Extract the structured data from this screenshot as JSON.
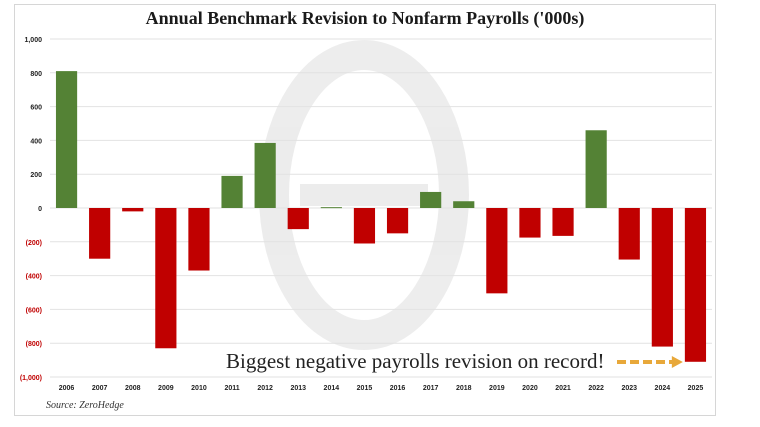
{
  "chart_data": {
    "type": "bar",
    "title": "Annual Benchmark Revision to Nonfarm Payrolls ('000s)",
    "categories": [
      "2006",
      "2007",
      "2008",
      "2009",
      "2010",
      "2011",
      "2012",
      "2013",
      "2014",
      "2015",
      "2016",
      "2017",
      "2018",
      "2019",
      "2020",
      "2021",
      "2022",
      "2023",
      "2024",
      "2025"
    ],
    "values": [
      810,
      -300,
      -20,
      -830,
      -370,
      190,
      385,
      -125,
      5,
      -210,
      -150,
      95,
      40,
      -505,
      -175,
      -165,
      460,
      -305,
      -820,
      -910
    ],
    "ylim": [
      -1000,
      1000
    ],
    "yticks": [
      1000,
      800,
      600,
      400,
      200,
      0,
      -200,
      -400,
      -600,
      -800,
      -1000
    ],
    "ytick_labels": [
      "1,000",
      "800",
      "600",
      "400",
      "200",
      "0",
      "(200)",
      "(400)",
      "(600)",
      "(800)",
      "(1,000)"
    ],
    "grid": true,
    "colors": {
      "positive": "#548235",
      "negative": "#c00000",
      "neg_tick": "#c00000",
      "pos_tick": "#222222",
      "arrow": "#e8a83a"
    },
    "annotation": "Biggest negative payrolls revision on record!",
    "source": "Source: ZeroHedge"
  }
}
